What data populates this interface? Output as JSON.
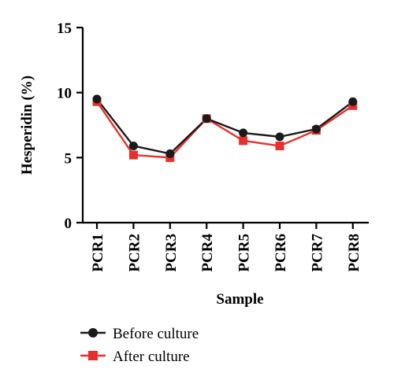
{
  "chart_data": {
    "type": "line",
    "categories": [
      "PCR1",
      "PCR2",
      "PCR3",
      "PCR4",
      "PCR5",
      "PCR6",
      "PCR7",
      "PCR8"
    ],
    "series": [
      {
        "name": "Before culture",
        "values": [
          9.5,
          5.9,
          5.3,
          8.0,
          6.9,
          6.6,
          7.2,
          9.3
        ],
        "color": "#1a1a1a",
        "marker": "circle"
      },
      {
        "name": "After culture",
        "values": [
          9.3,
          5.2,
          5.0,
          8.0,
          6.3,
          5.9,
          7.1,
          9.0
        ],
        "color": "#e8302a",
        "marker": "square"
      }
    ],
    "xlabel": "Sample",
    "ylabel": "Hesperidin (%)",
    "ylim": [
      0,
      15
    ],
    "yticks": [
      0,
      5,
      10,
      15
    ],
    "grid": false,
    "legend_position": "bottom-left"
  }
}
